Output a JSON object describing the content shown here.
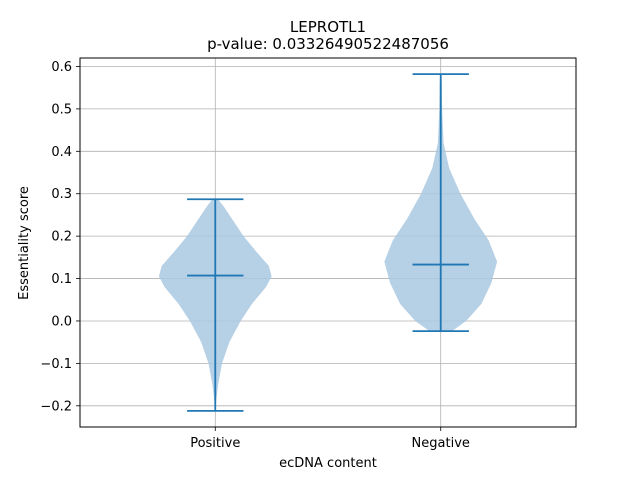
{
  "chart_data": {
    "type": "violin",
    "title": "LEPROTL1",
    "subtitle": "p-value: 0.03326490522487056",
    "xlabel": "ecDNA content",
    "ylabel": "Essentiality score",
    "categories": [
      "Positive",
      "Negative"
    ],
    "ylim": [
      -0.25,
      0.62
    ],
    "yticks": [
      -0.2,
      -0.1,
      0.0,
      0.1,
      0.2,
      0.3,
      0.4,
      0.5,
      0.6
    ],
    "ytick_labels": [
      "−0.2",
      "−0.1",
      "0.0",
      "0.1",
      "0.2",
      "0.3",
      "0.4",
      "0.5",
      "0.6"
    ],
    "grid": true,
    "colors": {
      "body": "#a9c8e2",
      "lines": "#1f77b4"
    },
    "violins": [
      {
        "name": "Positive",
        "min": -0.212,
        "max": 0.287,
        "median": 0.107,
        "density": [
          [
            -0.212,
            0.0
          ],
          [
            -0.19,
            0.015
          ],
          [
            -0.15,
            0.05
          ],
          [
            -0.1,
            0.12
          ],
          [
            -0.05,
            0.25
          ],
          [
            0.0,
            0.45
          ],
          [
            0.04,
            0.65
          ],
          [
            0.08,
            0.9
          ],
          [
            0.105,
            1.0
          ],
          [
            0.13,
            0.95
          ],
          [
            0.16,
            0.75
          ],
          [
            0.2,
            0.5
          ],
          [
            0.24,
            0.3
          ],
          [
            0.27,
            0.15
          ],
          [
            0.287,
            0.05
          ]
        ]
      },
      {
        "name": "Negative",
        "min": -0.024,
        "max": 0.582,
        "median": 0.133,
        "density": [
          [
            -0.024,
            0.2
          ],
          [
            0.0,
            0.45
          ],
          [
            0.04,
            0.72
          ],
          [
            0.09,
            0.9
          ],
          [
            0.14,
            1.0
          ],
          [
            0.19,
            0.85
          ],
          [
            0.24,
            0.6
          ],
          [
            0.3,
            0.35
          ],
          [
            0.36,
            0.15
          ],
          [
            0.42,
            0.05
          ],
          [
            0.5,
            0.025
          ],
          [
            0.55,
            0.02
          ],
          [
            0.582,
            0.01
          ]
        ]
      }
    ]
  }
}
